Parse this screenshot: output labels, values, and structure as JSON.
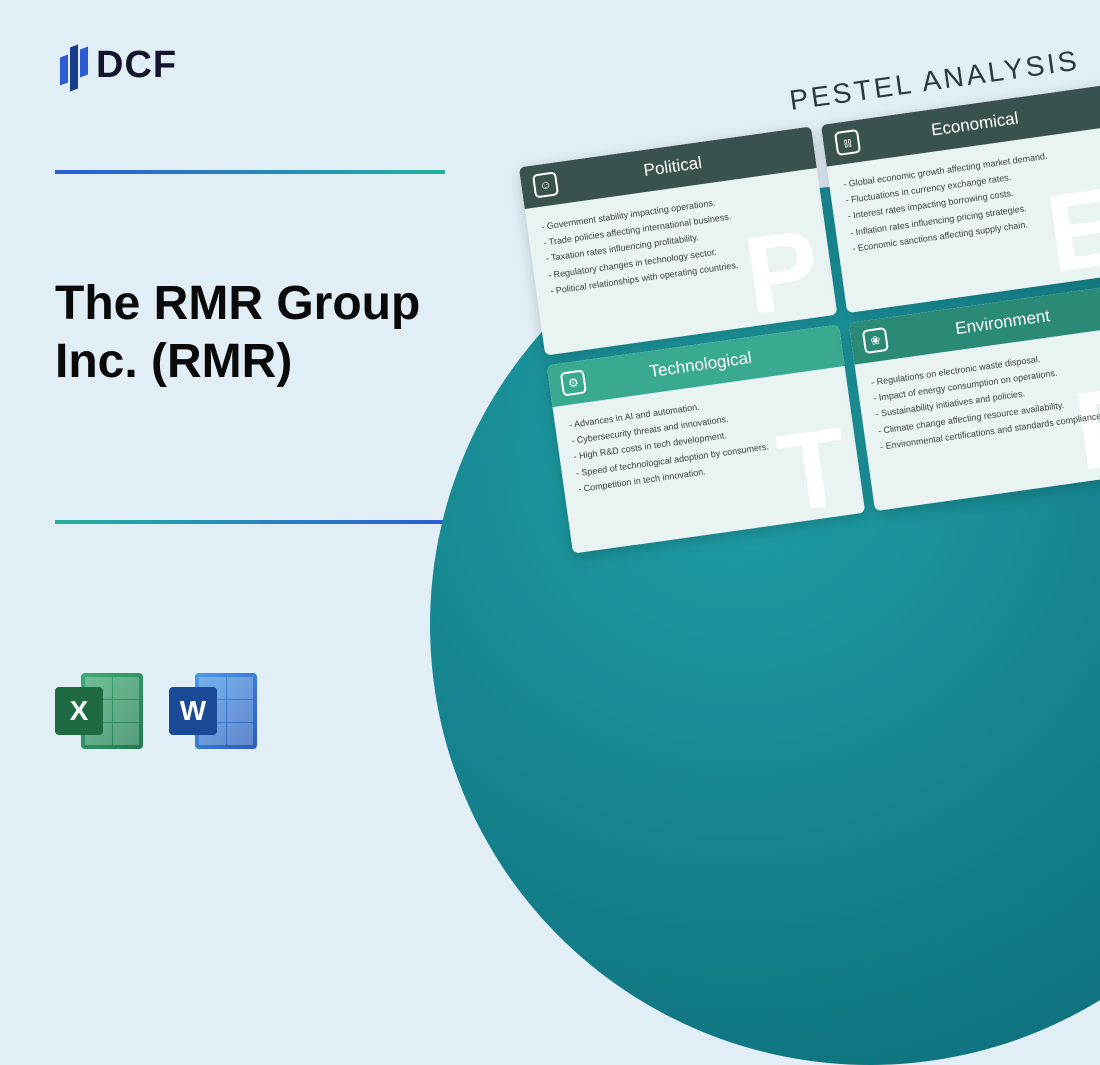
{
  "logo": {
    "text": "DCF"
  },
  "headline": "The RMR Group Inc. (RMR)",
  "file_icons": {
    "excel": {
      "letter": "X"
    },
    "word": {
      "letter": "W"
    }
  },
  "pestel": {
    "title": "PESTEL ANALYSIS",
    "cards": {
      "political": {
        "title": "Political",
        "letter": "P",
        "items": [
          "Government stability impacting operations.",
          "Trade policies affecting international business.",
          "Taxation rates influencing profitability.",
          "Regulatory changes in technology sector.",
          "Political relationships with operating countries."
        ]
      },
      "economical": {
        "title": "Economical",
        "letter": "E",
        "items": [
          "Global economic growth affecting market demand.",
          "Fluctuations in currency exchange rates.",
          "Interest rates impacting borrowing costs.",
          "Inflation rates influencing pricing strategies.",
          "Economic sanctions affecting supply chain."
        ]
      },
      "technological": {
        "title": "Technological",
        "letter": "T",
        "items": [
          "Advances in AI and automation.",
          "Cybersecurity threats and innovations.",
          "High R&D costs in tech development.",
          "Speed of technological adoption by consumers.",
          "Competition in tech innovation."
        ]
      },
      "environment": {
        "title": "Environment",
        "letter": "E",
        "items": [
          "Regulations on electronic waste disposal.",
          "Impact of energy consumption on operations.",
          "Sustainability initiatives and policies.",
          "Climate change affecting resource availability.",
          "Environmental certifications and standards compliance."
        ]
      }
    }
  },
  "colors": {
    "background": "#e1eef5",
    "circle_gradient_from": "#1f9ea5",
    "circle_gradient_to": "#0a6775",
    "accent_gradient_from": "#2b5cd6",
    "accent_gradient_to": "#22b29c",
    "card_dark_header": "#39514f",
    "card_teal_header": "#39a98f",
    "card_tealdk_header": "#2a8a76"
  }
}
